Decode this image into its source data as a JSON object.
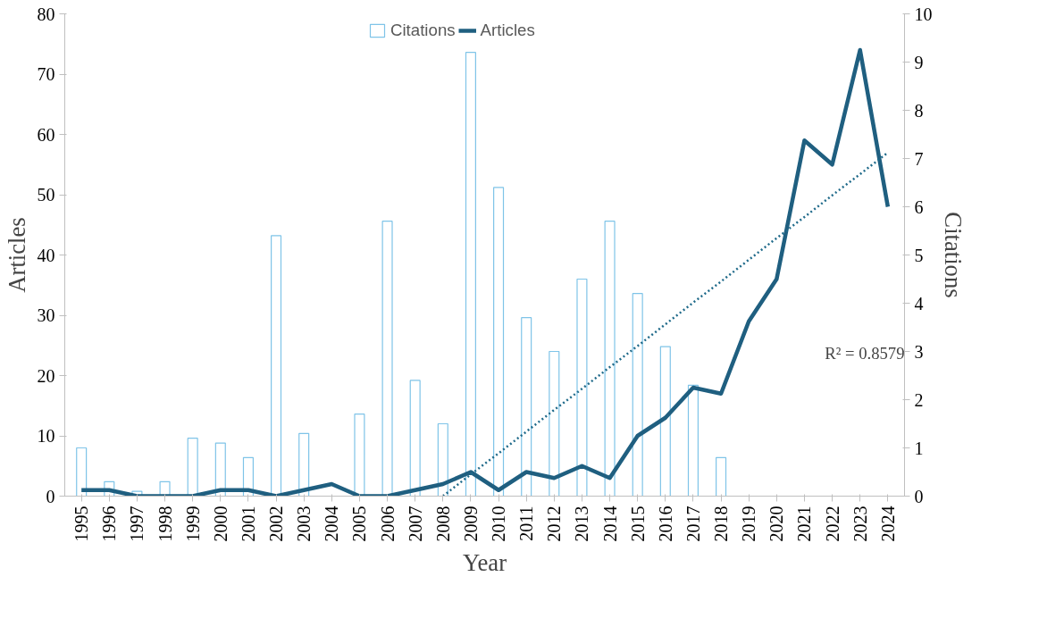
{
  "chart_data": {
    "type": "bar",
    "xlabel": "Year",
    "ylabel": "Articles",
    "y2label": "Citations",
    "categories": [
      "1995",
      "1996",
      "1997",
      "1998",
      "1999",
      "2000",
      "2001",
      "2002",
      "2003",
      "2004",
      "2005",
      "2006",
      "2007",
      "2008",
      "2009",
      "2010",
      "2011",
      "2012",
      "2013",
      "2014",
      "2015",
      "2016",
      "2017",
      "2018",
      "2019",
      "2020",
      "2021",
      "2022",
      "2023",
      "2024"
    ],
    "series": [
      {
        "name": "Citations",
        "axis": "y2",
        "color": "#7fc4e8",
        "values": [
          1.0,
          0.3,
          0.1,
          0.3,
          1.2,
          1.1,
          0.8,
          5.4,
          1.3,
          0,
          1.7,
          5.7,
          2.4,
          1.5,
          9.2,
          6.4,
          3.7,
          3.0,
          4.5,
          5.7,
          4.2,
          3.1,
          2.3,
          0.8,
          0,
          0,
          0,
          0,
          0,
          0
        ]
      },
      {
        "name": "Articles",
        "type": "line",
        "axis": "y",
        "color": "#1f5f80",
        "values": [
          1,
          1,
          0,
          0,
          0,
          1,
          1,
          0,
          1,
          2,
          0,
          0,
          1,
          2,
          4,
          1,
          4,
          3,
          5,
          3,
          10,
          13,
          18,
          17,
          29,
          36,
          59,
          55,
          74,
          48
        ]
      },
      {
        "type": "line",
        "axis": "y",
        "color": "#1f6a8a",
        "line_style": "dotted",
        "values": [
          null,
          null,
          null,
          null,
          null,
          null,
          null,
          null,
          null,
          null,
          null,
          null,
          null,
          0,
          3.6,
          7.1,
          10.7,
          14.3,
          17.8,
          21.4,
          24.9,
          28.5,
          32.1,
          35.6,
          39.2,
          42.8,
          46.3,
          49.9,
          53.4,
          57
        ]
      }
    ],
    "annotations": [
      "R² = 0.8579"
    ],
    "ylim": [
      0,
      80
    ],
    "yticks": [
      0,
      10,
      20,
      30,
      40,
      50,
      60,
      70,
      80
    ],
    "y2lim": [
      0,
      10
    ],
    "y2ticks": [
      0,
      1,
      2,
      3,
      4,
      5,
      6,
      7,
      8,
      9,
      10
    ],
    "grid": false,
    "legend": "top",
    "marker": "none"
  }
}
